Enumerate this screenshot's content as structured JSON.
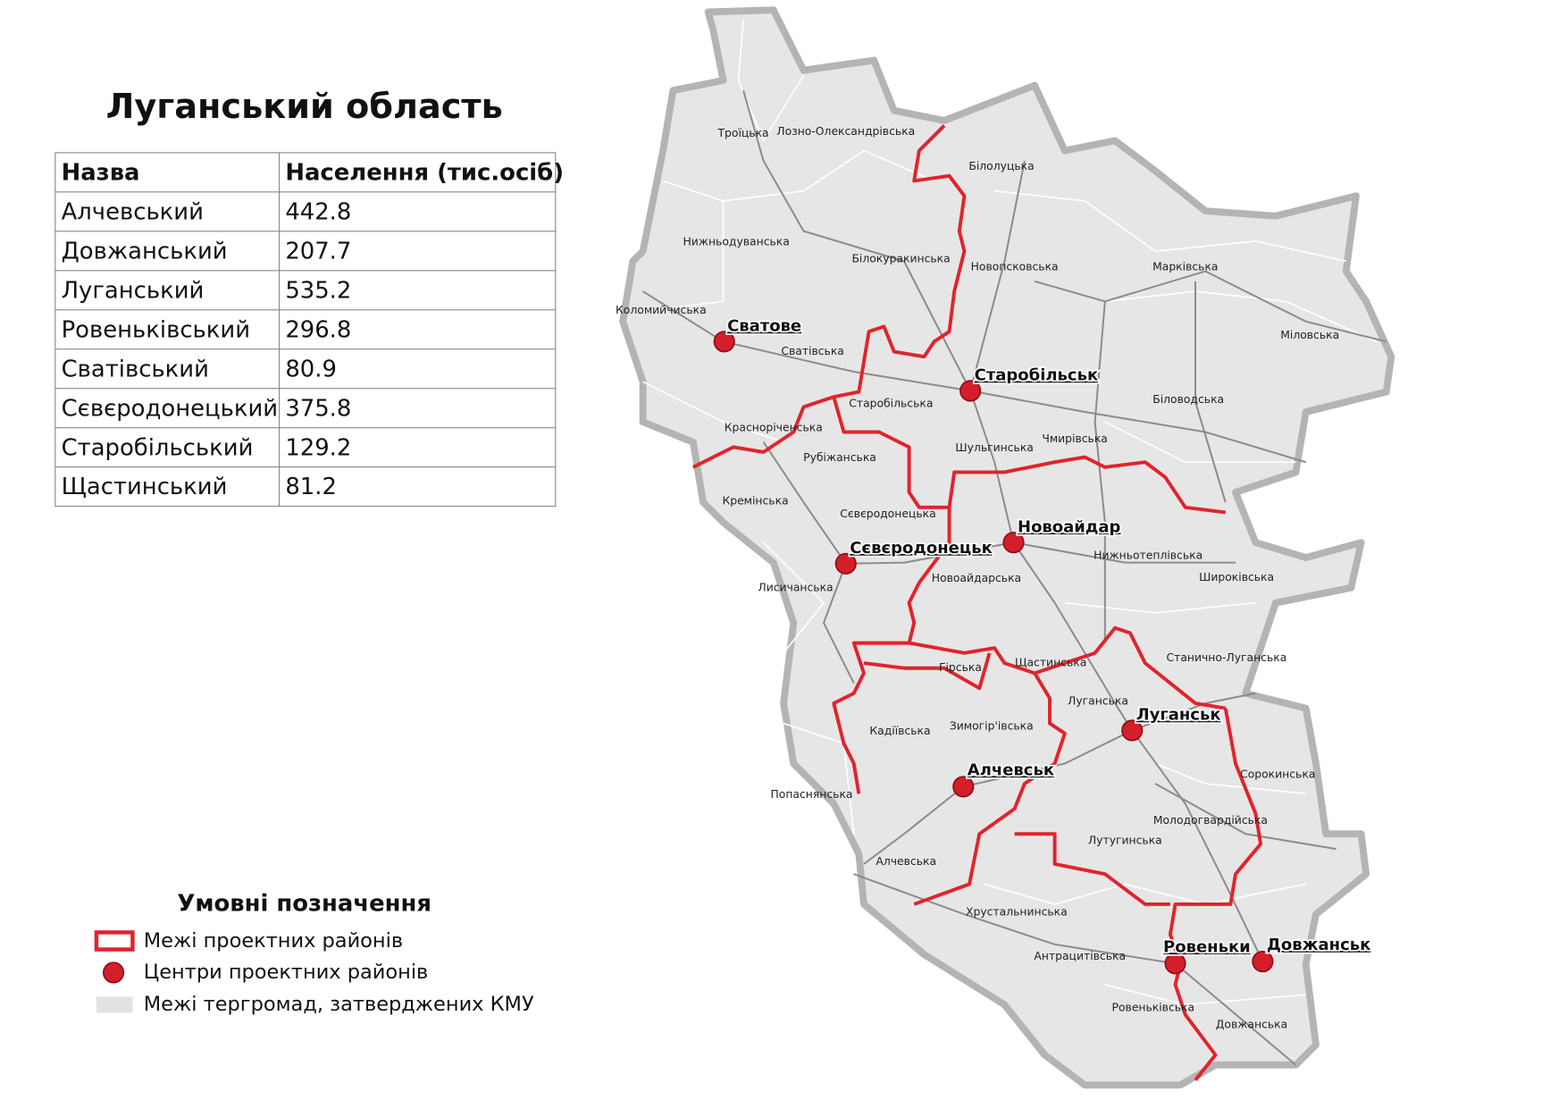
{
  "title": "Луганський область",
  "table": {
    "header": [
      "Назва",
      "Населення (тис.осіб)"
    ],
    "rows": [
      [
        "Алчевський",
        442.8
      ],
      [
        "Довжанський",
        207.7
      ],
      [
        "Луганський",
        535.2
      ],
      [
        "Ровеньківський",
        296.8
      ],
      [
        "Сватівський",
        80.9
      ],
      [
        "Сєвєродонецький",
        375.8
      ],
      [
        "Старобільський",
        129.2
      ],
      [
        "Щастинський",
        81.2
      ]
    ]
  },
  "legend": {
    "title": "Умовні позначення",
    "items": [
      "Межі проектних районів",
      "Центри проектних районів",
      "Межі тергромад, затверджених КМУ"
    ]
  },
  "map": {
    "centers": [
      "Сватове",
      "Старобільськ",
      "Новоайдар",
      "Сєвєродонецьк",
      "Луганськ",
      "Алчевськ",
      "Ровеньки",
      "Довжанськ"
    ],
    "hromadas": [
      "Троїцька",
      "Лозно-Олександрівська",
      "Білолуцька",
      "Нижньодуванська",
      "Білокуракинська",
      "Новопсковська",
      "Марківська",
      "Коломийчиська",
      "Міловська",
      "Сватівська",
      "Старобільська",
      "Біловодська",
      "Красноріченська",
      "Шульгинська",
      "Чмирівська",
      "Рубіжанська",
      "Кремінська",
      "Сєвєродонецька",
      "Нижньотеплівська",
      "Широківська",
      "Новоайдарська",
      "Лисичанська",
      "Гірська",
      "Щастинська",
      "Станично-Луганська",
      "Луганська",
      "Кадіївська",
      "Зимогір'івська",
      "Сорокинська",
      "Попаснянська",
      "Молодогвардійська",
      "Лутугинська",
      "Алчевська",
      "Хрустальнинська",
      "Антрацитівська",
      "Ровеньківська",
      "Довжанська"
    ]
  }
}
